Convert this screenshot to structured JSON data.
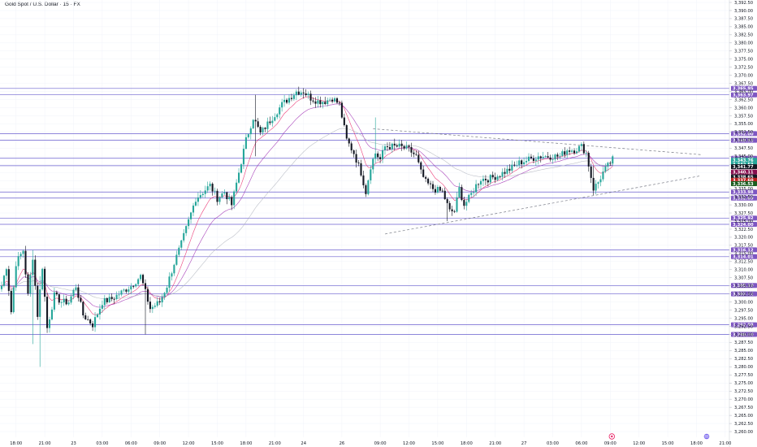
{
  "title": "Gold Spot / U.S. Dollar · 15 · FX",
  "colors": {
    "up": "#26a69a",
    "down": "#131722",
    "grid": "#f0f3fa",
    "level_line": "#6a5fcf",
    "level_label": "#7e57c2",
    "ma1": "#e91e63",
    "ma2": "#9c27b0",
    "ma3": "#b2b5be",
    "trendline": "#787b86",
    "marker_icon": "#e91e63",
    "flag_icon": "#7b68ee"
  },
  "icons": {
    "marker": "circle-marker-icon",
    "flag": "us-flag-icon"
  },
  "chart_data": {
    "type": "candlestick",
    "symbol": "Gold Spot / U.S. Dollar",
    "interval": "15",
    "market": "FX",
    "ylim": [
      3257.5,
      3392.5
    ],
    "yticks": [
      3260,
      3262.5,
      3265,
      3267.5,
      3270,
      3272.5,
      3275,
      3277.5,
      3280,
      3282.5,
      3285,
      3287.5,
      3290,
      3292.5,
      3295,
      3297.5,
      3300,
      3302.5,
      3305,
      3307.5,
      3310,
      3312.5,
      3315,
      3317.5,
      3320,
      3322.5,
      3325,
      3327.5,
      3330,
      3332.5,
      3335,
      3337.5,
      3340,
      3342.5,
      3345,
      3347.5,
      3350,
      3352.5,
      3355,
      3357.5,
      3360,
      3362.5,
      3365,
      3367.5,
      3370,
      3372.5,
      3375,
      3377.5,
      3380,
      3382.5,
      3385,
      3387.5,
      3390,
      3392.5
    ],
    "xticks": [
      {
        "label": "18:00",
        "bar": 6
      },
      {
        "label": "21:00",
        "bar": 18
      },
      {
        "label": "23",
        "bar": 30
      },
      {
        "label": "03:00",
        "bar": 42
      },
      {
        "label": "06:00",
        "bar": 54
      },
      {
        "label": "09:00",
        "bar": 66
      },
      {
        "label": "12:00",
        "bar": 78
      },
      {
        "label": "15:00",
        "bar": 90
      },
      {
        "label": "18:00",
        "bar": 102
      },
      {
        "label": "21:00",
        "bar": 114
      },
      {
        "label": "24",
        "bar": 126
      },
      {
        "label": "26",
        "bar": 142
      },
      {
        "label": "09:00",
        "bar": 158
      },
      {
        "label": "12:00",
        "bar": 170
      },
      {
        "label": "15:00",
        "bar": 182
      },
      {
        "label": "18:00",
        "bar": 194
      },
      {
        "label": "21:00",
        "bar": 206
      },
      {
        "label": "27",
        "bar": 218
      },
      {
        "label": "03:00",
        "bar": 230
      },
      {
        "label": "06:00",
        "bar": 242
      },
      {
        "label": "09:00",
        "bar": 254
      },
      {
        "label": "12:00",
        "bar": 266
      },
      {
        "label": "15:00",
        "bar": 278
      },
      {
        "label": "18:00",
        "bar": 290
      },
      {
        "label": "21:00",
        "bar": 302
      }
    ],
    "keypoints": [
      [
        0,
        3305
      ],
      [
        2,
        3311
      ],
      [
        4,
        3297
      ],
      [
        6,
        3312
      ],
      [
        9,
        3316
      ],
      [
        11,
        3302
      ],
      [
        13,
        3314
      ],
      [
        15,
        3296
      ],
      [
        17,
        3311
      ],
      [
        19,
        3292
      ],
      [
        22,
        3302
      ],
      [
        25,
        3300
      ],
      [
        28,
        3300
      ],
      [
        31,
        3305
      ],
      [
        34,
        3296
      ],
      [
        38,
        3293
      ],
      [
        42,
        3300
      ],
      [
        46,
        3301
      ],
      [
        50,
        3303
      ],
      [
        54,
        3305
      ],
      [
        58,
        3308
      ],
      [
        62,
        3298
      ],
      [
        66,
        3300
      ],
      [
        69,
        3305
      ],
      [
        72,
        3312
      ],
      [
        75,
        3318
      ],
      [
        78,
        3325
      ],
      [
        81,
        3332
      ],
      [
        84,
        3334
      ],
      [
        87,
        3336
      ],
      [
        90,
        3332
      ],
      [
        93,
        3334
      ],
      [
        96,
        3330
      ],
      [
        99,
        3340
      ],
      [
        102,
        3350
      ],
      [
        105,
        3357
      ],
      [
        108,
        3352
      ],
      [
        111,
        3355
      ],
      [
        114,
        3358
      ],
      [
        117,
        3361
      ],
      [
        120,
        3363
      ],
      [
        123,
        3365
      ],
      [
        126,
        3365
      ],
      [
        129,
        3363
      ],
      [
        132,
        3362
      ],
      [
        135,
        3362
      ],
      [
        138,
        3363
      ],
      [
        141,
        3361
      ],
      [
        144,
        3350
      ],
      [
        147,
        3346
      ],
      [
        150,
        3340
      ],
      [
        152,
        3334
      ],
      [
        154,
        3342
      ],
      [
        156,
        3346
      ],
      [
        158,
        3344
      ],
      [
        160,
        3348
      ],
      [
        163,
        3348
      ],
      [
        166,
        3348
      ],
      [
        170,
        3347
      ],
      [
        173,
        3345
      ],
      [
        175,
        3340
      ],
      [
        177,
        3337
      ],
      [
        180,
        3335
      ],
      [
        184,
        3334
      ],
      [
        187,
        3328
      ],
      [
        189,
        3328
      ],
      [
        191,
        3335
      ],
      [
        193,
        3330
      ],
      [
        195,
        3332
      ],
      [
        198,
        3336
      ],
      [
        200,
        3338
      ],
      [
        203,
        3338
      ],
      [
        207,
        3339
      ],
      [
        212,
        3341
      ],
      [
        216,
        3343
      ],
      [
        220,
        3344
      ],
      [
        224,
        3345
      ],
      [
        229,
        3345
      ],
      [
        233,
        3345
      ],
      [
        236,
        3347
      ],
      [
        239,
        3347
      ],
      [
        242,
        3348
      ],
      [
        244,
        3346
      ],
      [
        247,
        3335
      ],
      [
        249,
        3337
      ],
      [
        251,
        3340
      ],
      [
        253,
        3342
      ],
      [
        255,
        3344
      ]
    ],
    "wick_spikes": [
      {
        "bar": 13,
        "high": 3316,
        "low": 3287
      },
      {
        "bar": 16,
        "high": 3308,
        "low": 3280
      },
      {
        "bar": 60,
        "high": 3307,
        "low": 3290
      },
      {
        "bar": 106,
        "high": 3364,
        "low": 3345
      },
      {
        "bar": 156,
        "high": 3357,
        "low": 3343
      },
      {
        "bar": 186,
        "high": 3330,
        "low": 3325
      },
      {
        "bar": 247,
        "high": 3342,
        "low": 3333
      }
    ],
    "levels": [
      {
        "price": 3365.95,
        "label": "3,365.95"
      },
      {
        "price": 3363.97,
        "label": "3,363.97"
      },
      {
        "price": 3352.0,
        "label": "3,352.00"
      },
      {
        "price": 3349.93,
        "label": "3,349.93"
      },
      {
        "price": 3344.38,
        "label": "3,344.38"
      },
      {
        "price": 3342.09,
        "label": "3,342.09"
      },
      {
        "price": 3333.98,
        "label": "3,333.98"
      },
      {
        "price": 3332.09,
        "label": "3,332.09"
      },
      {
        "price": 3325.92,
        "label": "3,325.92"
      },
      {
        "price": 3324.0,
        "label": "3,324.00"
      },
      {
        "price": 3316.12,
        "label": "3,316.12"
      },
      {
        "price": 3314.01,
        "label": "3,314.01"
      },
      {
        "price": 3305.1,
        "label": "3,305.10"
      },
      {
        "price": 3302.52,
        "label": "3,302.52"
      },
      {
        "price": 3292.98,
        "label": "3,292.98"
      },
      {
        "price": 3290.0,
        "label": "3,290.00"
      }
    ],
    "price_tags": [
      {
        "price": 3343.76,
        "label": "3,343.76",
        "color": "#26a69a"
      },
      {
        "price": 3342.53,
        "label": "3,342.53",
        "color": "#26a69a"
      },
      {
        "price": 3341.77,
        "label": "3,341.77",
        "color": "#131722"
      },
      {
        "price": 3340.11,
        "label": "3,340.11",
        "color": "#880e4f"
      },
      {
        "price": 3338.65,
        "label": "3,338.65",
        "color": "#131722"
      },
      {
        "price": 3337.6,
        "label": "3,337.60",
        "color": "#b71c1c"
      },
      {
        "price": 3336.53,
        "label": "3,336.53",
        "color": "#1b5e20"
      }
    ],
    "trendlines": [
      {
        "from": [
          155,
          3353.5
        ],
        "to": [
          292,
          3345.5
        ]
      },
      {
        "from": [
          160,
          3321
        ],
        "to": [
          292,
          3339
        ]
      }
    ],
    "last_bar_index": 255
  }
}
